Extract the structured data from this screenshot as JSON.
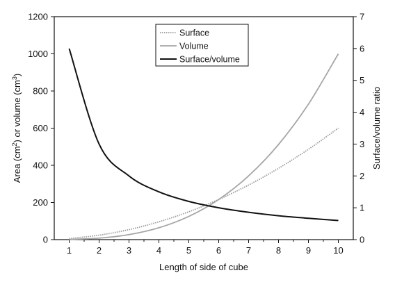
{
  "chart_data": {
    "type": "line",
    "xlabel": "Length of side of cube",
    "ylabel_left_parts": [
      "Area (cm",
      "2",
      ") or volume (cm",
      "3",
      ")"
    ],
    "ylabel_right": "Surface/volume ratio",
    "x_ticks": [
      1,
      2,
      3,
      4,
      5,
      6,
      7,
      8,
      9,
      10
    ],
    "y_left_ticks": [
      0,
      200,
      400,
      600,
      800,
      1000,
      1200
    ],
    "y_right_ticks": [
      0,
      1,
      2,
      3,
      4,
      5,
      6,
      7
    ],
    "xlim": [
      0.5,
      10.5
    ],
    "ylim_left": [
      0,
      1200
    ],
    "ylim_right": [
      0,
      7
    ],
    "grid": false,
    "legend_position": "top-center",
    "x": [
      1,
      2,
      3,
      4,
      5,
      6,
      7,
      8,
      9,
      10
    ],
    "series": [
      {
        "name": "Surface",
        "axis": "left",
        "style": "dotted",
        "color": "#9a9a9a",
        "values": [
          6,
          24,
          54,
          96,
          150,
          216,
          294,
          384,
          486,
          600
        ]
      },
      {
        "name": "Volume",
        "axis": "left",
        "style": "solid",
        "color": "#a6a6a6",
        "values": [
          1,
          8,
          27,
          64,
          125,
          216,
          343,
          512,
          729,
          1000
        ]
      },
      {
        "name": "Surface/volume",
        "axis": "right",
        "style": "solid",
        "color": "#111111",
        "values": [
          6,
          3,
          2,
          1.5,
          1.2,
          1,
          0.86,
          0.75,
          0.67,
          0.6
        ]
      }
    ]
  }
}
